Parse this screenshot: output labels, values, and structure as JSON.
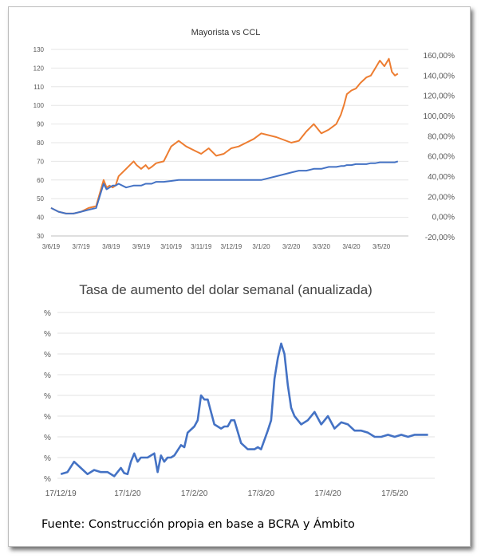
{
  "source_text": "Fuente: Construcción propia en base a BCRA y Ámbito",
  "chart_data": [
    {
      "type": "line",
      "title": "Mayorista vs CCL",
      "x_tick_labels": [
        "3/6/19",
        "3/7/19",
        "3/8/19",
        "3/9/19",
        "3/10/19",
        "3/11/19",
        "3/12/19",
        "3/1/20",
        "3/2/20",
        "3/3/20",
        "3/4/20",
        "3/5/20"
      ],
      "y_left_ticks": [
        "130",
        "120",
        "110",
        "100",
        "90",
        "80",
        "70",
        "60",
        "50",
        "40",
        "30"
      ],
      "y_left_lim": [
        30,
        130
      ],
      "y_right_ticks": [
        "160,00%",
        "140,00%",
        "120,00%",
        "100,00%",
        "80,00%",
        "60,00%",
        "40,00%",
        "20,00%",
        "0,00%",
        "-20,00%"
      ],
      "y_right_lim": [
        -20,
        160
      ],
      "x": [
        0,
        0.25,
        0.5,
        0.75,
        1.0,
        1.25,
        1.5,
        1.75,
        1.85,
        1.95,
        2.05,
        2.15,
        2.25,
        2.5,
        2.75,
        2.85,
        3.0,
        3.15,
        3.25,
        3.35,
        3.5,
        3.75,
        4.0,
        4.25,
        4.5,
        4.75,
        5.0,
        5.25,
        5.5,
        5.75,
        6.0,
        6.25,
        6.5,
        6.75,
        7.0,
        7.5,
        8.0,
        8.25,
        8.5,
        8.75,
        9.0,
        9.25,
        9.5,
        9.65,
        9.75,
        9.85,
        10.0,
        10.15,
        10.3,
        10.5,
        10.65,
        10.8,
        10.95,
        11.1,
        11.25,
        11.35,
        11.45,
        11.55
      ],
      "series": [
        {
          "color": "#ed7d31",
          "values": [
            45,
            43,
            42,
            42,
            43,
            45,
            46,
            60,
            56,
            57,
            56,
            57,
            62,
            66,
            70,
            68,
            66,
            68,
            66,
            67,
            69,
            70,
            78,
            81,
            78,
            76,
            74,
            77,
            73,
            74,
            77,
            78,
            80,
            82,
            85,
            83,
            80,
            81,
            86,
            90,
            85,
            87,
            90,
            95,
            100,
            106,
            108,
            109,
            112,
            115,
            116,
            120,
            124,
            121,
            125,
            118,
            116,
            117
          ]
        },
        {
          "color": "#4472c4",
          "values": [
            45,
            43,
            42,
            42,
            43,
            44,
            45,
            58,
            55,
            56,
            57,
            57,
            58,
            56,
            57,
            57,
            57,
            58,
            58,
            58,
            59,
            59,
            59.5,
            60,
            60,
            60,
            60,
            60,
            60,
            60,
            60,
            60,
            60,
            60,
            60,
            62,
            64,
            65,
            65,
            66,
            66,
            67,
            67,
            67.5,
            67.5,
            68,
            68,
            68.5,
            68.5,
            68.5,
            69,
            69,
            69.5,
            69.5,
            69.5,
            69.5,
            69.5,
            70
          ]
        }
      ]
    },
    {
      "type": "line",
      "title": "Tasa de aumento del dolar semanal (anualizada)",
      "x_tick_labels": [
        "17/12/19",
        "17/1/20",
        "17/2/20",
        "17/3/20",
        "17/4/20",
        "17/5/20"
      ],
      "y_tick_labels": [
        "%",
        "%",
        "%",
        "%",
        "%",
        "%",
        "%",
        "%",
        "%"
      ],
      "y_lim": [
        0,
        8
      ],
      "x": [
        0,
        0.1,
        0.2,
        0.3,
        0.4,
        0.5,
        0.6,
        0.7,
        0.8,
        0.9,
        0.95,
        1.0,
        1.05,
        1.1,
        1.15,
        1.2,
        1.3,
        1.4,
        1.45,
        1.5,
        1.55,
        1.6,
        1.65,
        1.7,
        1.8,
        1.85,
        1.9,
        2.0,
        2.05,
        2.1,
        2.15,
        2.2,
        2.3,
        2.4,
        2.45,
        2.5,
        2.55,
        2.6,
        2.7,
        2.8,
        2.9,
        2.95,
        3.0,
        3.1,
        3.15,
        3.2,
        3.25,
        3.3,
        3.35,
        3.4,
        3.45,
        3.5,
        3.6,
        3.7,
        3.8,
        3.9,
        4.0,
        4.1,
        4.2,
        4.3,
        4.4,
        4.5,
        4.6,
        4.7,
        4.8,
        4.9,
        5.0,
        5.1,
        5.2,
        5.3,
        5.4,
        5.5
      ],
      "series": [
        {
          "color": "#4472c4",
          "values": [
            0.2,
            0.3,
            0.8,
            0.5,
            0.2,
            0.4,
            0.3,
            0.3,
            0.1,
            0.5,
            0.25,
            0.2,
            0.8,
            1.2,
            0.8,
            1.0,
            1.0,
            1.2,
            0.3,
            1.1,
            0.8,
            1.0,
            1.0,
            1.1,
            1.6,
            1.5,
            2.2,
            2.5,
            2.8,
            4.0,
            3.8,
            3.8,
            2.6,
            2.4,
            2.5,
            2.5,
            2.8,
            2.8,
            1.7,
            1.4,
            1.4,
            1.5,
            1.4,
            2.3,
            2.8,
            4.8,
            5.8,
            6.5,
            6.0,
            4.5,
            3.4,
            3.0,
            2.6,
            2.8,
            3.2,
            2.6,
            3.0,
            2.4,
            2.7,
            2.6,
            2.3,
            2.3,
            2.2,
            2.0,
            2.0,
            2.1,
            2.0,
            2.1,
            2.0,
            2.1,
            2.1,
            2.1
          ]
        }
      ]
    }
  ]
}
